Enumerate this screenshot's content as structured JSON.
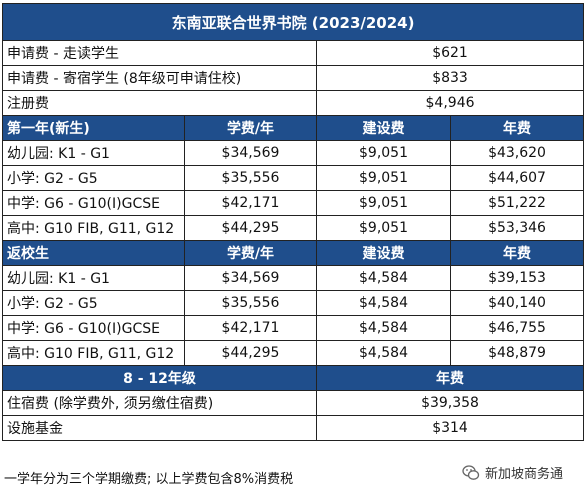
{
  "title": "东南亚联合世界书院 (2023/2024)",
  "top_rows": [
    {
      "label": "申请费 - 走读学生",
      "value": "$621"
    },
    {
      "label": "申请费 - 寄宿学生 (8年级可申请住校)",
      "value": "$833"
    },
    {
      "label": "注册费",
      "value": "$4,946"
    }
  ],
  "section1": {
    "header": [
      "第一年(新生)",
      "学费/年",
      "建设费",
      "年费"
    ],
    "rows": [
      [
        "幼儿园: K1 - G1",
        "$34,569",
        "$9,051",
        "$43,620"
      ],
      [
        "小学: G2 - G5",
        "$35,556",
        "$9,051",
        "$44,607"
      ],
      [
        "中学: G6 - G10(I)GCSE",
        "$42,171",
        "$9,051",
        "$51,222"
      ],
      [
        "高中: G10 FIB, G11, G12",
        "$44,295",
        "$9,051",
        "$53,346"
      ]
    ]
  },
  "section2": {
    "header": [
      "返校生",
      "学费/年",
      "建设费",
      "年费"
    ],
    "rows": [
      [
        "幼儿园: K1 - G1",
        "$34,569",
        "$4,584",
        "$39,153"
      ],
      [
        "小学: G2 - G5",
        "$35,556",
        "$4,584",
        "$40,140"
      ],
      [
        "中学: G6 - G10(I)GCSE",
        "$42,171",
        "$4,584",
        "$46,755"
      ],
      [
        "高中: G10 FIB, G11, G12",
        "$44,295",
        "$4,584",
        "$48,879"
      ]
    ]
  },
  "section3": {
    "header": [
      "8 - 12年级",
      "年费"
    ],
    "rows": [
      {
        "label": "住宿费 (除学费外, 须另缴住宿费)",
        "value": "$39,358"
      },
      {
        "label": "设施基金",
        "value": "$314"
      }
    ]
  },
  "footer_note": "一学年分为三个学期缴费; 以上学费包含8%消费税",
  "watermark": "新加坡商务通",
  "colors": {
    "header_bg": "#1f4e8c",
    "header_text": "#ffffff"
  }
}
